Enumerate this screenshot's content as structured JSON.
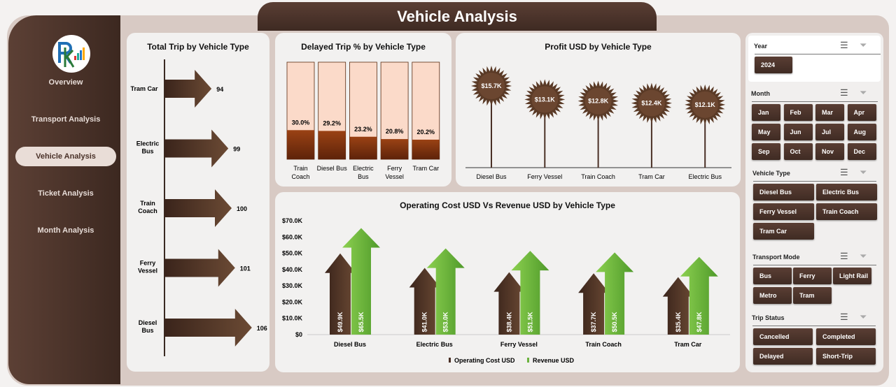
{
  "title": "Vehicle Analysis",
  "nav": [
    "Overview",
    "Transport Analysis",
    "Vehicle Analysis",
    "Ticket Analysis",
    "Month Analysis"
  ],
  "active_nav": "Vehicle Analysis",
  "colors": {
    "brown": "#4a3026",
    "green": "#6cb33f",
    "peach": "#fbdac9",
    "rust": "#8b3a10"
  },
  "chart_data": [
    {
      "type": "bar",
      "title": "Total Trip by Vehicle Type",
      "orientation": "horizontal",
      "categories": [
        "Tram Car",
        "Electric Bus",
        "Train Coach",
        "Ferry Vessel",
        "Diesel Bus"
      ],
      "values": [
        94,
        99,
        100,
        101,
        106
      ]
    },
    {
      "type": "bar",
      "title": "Delayed Trip % by Vehicle Type",
      "categories": [
        "Train Coach",
        "Diesel Bus",
        "Electric Bus",
        "Ferry Vessel",
        "Tram Car"
      ],
      "values": [
        30.0,
        29.2,
        23.2,
        20.8,
        20.2
      ],
      "labels": [
        "30.0%",
        "29.2%",
        "23.2%",
        "20.8%",
        "20.2%"
      ],
      "ylim": [
        0,
        100
      ]
    },
    {
      "type": "bar",
      "title": "Profit USD by Vehicle Type",
      "style": "lollipop",
      "categories": [
        "Diesel Bus",
        "Ferry Vessel",
        "Train Coach",
        "Tram Car",
        "Electric Bus"
      ],
      "values": [
        15.7,
        13.1,
        12.8,
        12.4,
        12.1
      ],
      "labels": [
        "$15.7K",
        "$13.1K",
        "$12.8K",
        "$12.4K",
        "$12.1K"
      ]
    },
    {
      "type": "bar",
      "title": "Operating Cost USD Vs Revenue USD by Vehicle Type",
      "categories": [
        "Diesel Bus",
        "Electric Bus",
        "Ferry Vessel",
        "Train Coach",
        "Tram Car"
      ],
      "yticks": [
        "$0",
        "$10.0K",
        "$20.0K",
        "$30.0K",
        "$40.0K",
        "$50.0K",
        "$60.0K",
        "$70.0K"
      ],
      "ylim": [
        0,
        70
      ],
      "legend": "bottom",
      "series": [
        {
          "name": "Operating Cost USD",
          "values": [
            49.9,
            41.0,
            38.4,
            37.7,
            35.4
          ],
          "labels": [
            "$49.9K",
            "$41.0K",
            "$38.4K",
            "$37.7K",
            "$35.4K"
          ]
        },
        {
          "name": "Revenue USD",
          "values": [
            65.5,
            53.0,
            51.5,
            50.5,
            47.8
          ],
          "labels": [
            "$65.5K",
            "$53.0K",
            "$51.5K",
            "$50.5K",
            "$47.8K"
          ]
        }
      ]
    }
  ],
  "slicers": [
    {
      "title": "Year",
      "items": [
        "2024"
      ]
    },
    {
      "title": "Month",
      "items": [
        "Jan",
        "Feb",
        "Mar",
        "Apr",
        "May",
        "Jun",
        "Jul",
        "Aug",
        "Sep",
        "Oct",
        "Nov",
        "Dec"
      ]
    },
    {
      "title": "Vehicle Type",
      "items": [
        "Diesel Bus",
        "Electric Bus",
        "Ferry Vessel",
        "Train Coach",
        "Tram Car"
      ]
    },
    {
      "title": "Transport Mode",
      "items": [
        "Bus",
        "Ferry",
        "Light Rail",
        "Metro",
        "Tram"
      ]
    },
    {
      "title": "Trip Status",
      "items": [
        "Cancelled",
        "Completed",
        "Delayed",
        "Short-Trip"
      ]
    }
  ]
}
